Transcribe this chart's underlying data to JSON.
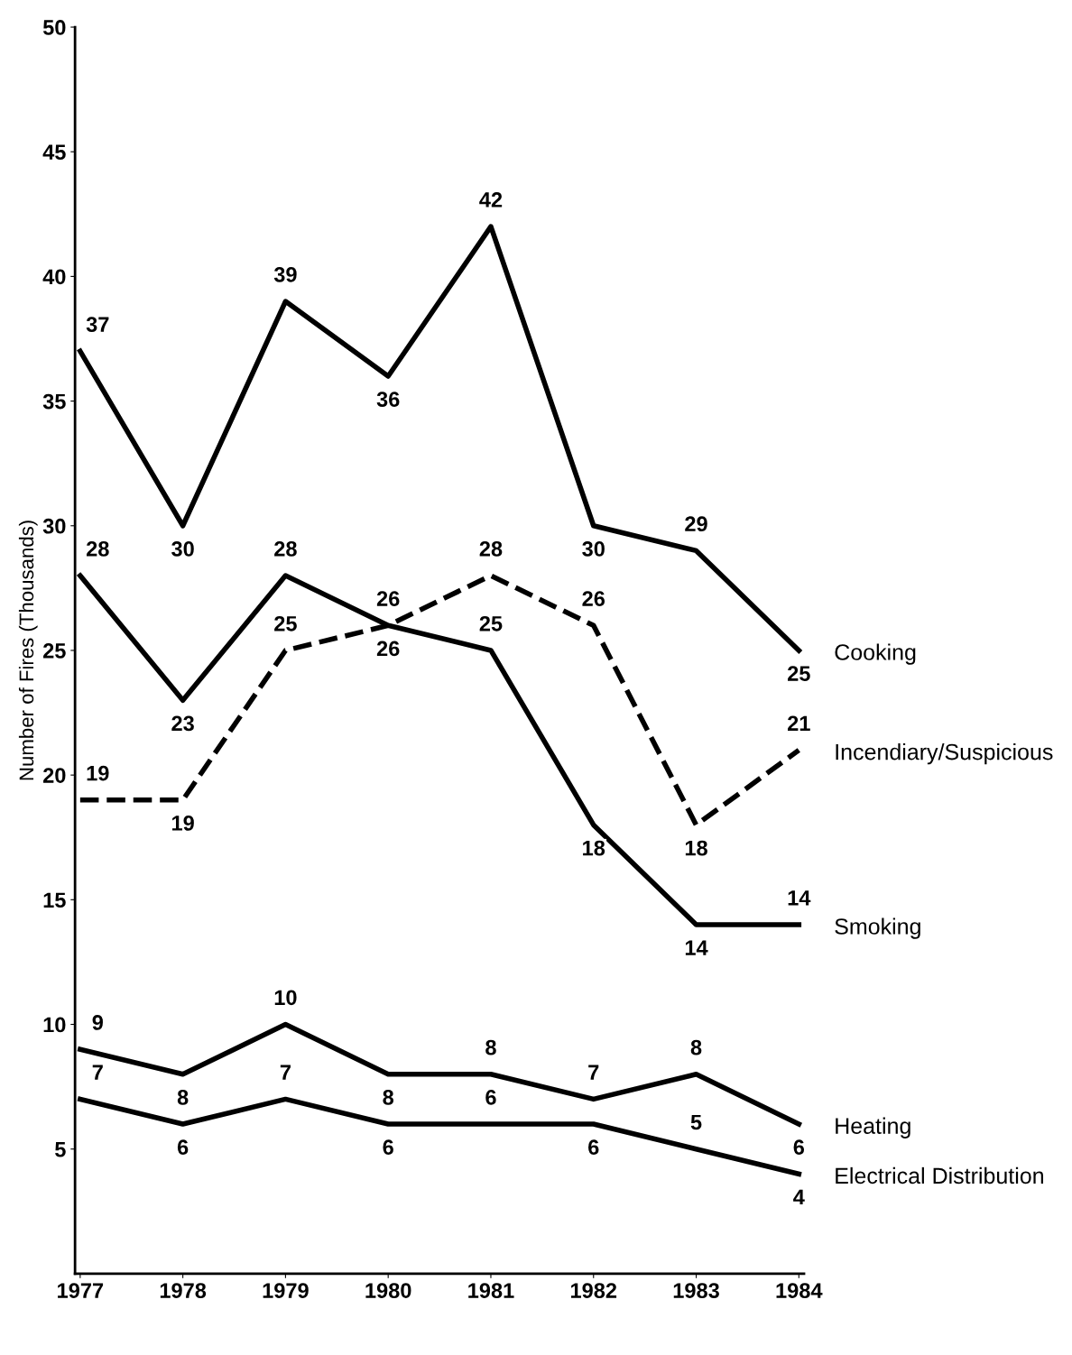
{
  "chart_data": {
    "type": "line",
    "ylabel": "Number of Fires (Thousands)",
    "categories": [
      "1977",
      "1978",
      "1979",
      "1980",
      "1981",
      "1982",
      "1983",
      "1984"
    ],
    "ylim": [
      0,
      50
    ],
    "yticks": [
      5,
      10,
      15,
      20,
      25,
      30,
      35,
      40,
      45,
      50
    ],
    "grid": false,
    "legend": false,
    "data_labels": true,
    "marker": "none",
    "series": [
      {
        "name": "Cooking",
        "color": "#000000",
        "line_style": "solid",
        "values": [
          37,
          30,
          39,
          36,
          42,
          30,
          29,
          25
        ]
      },
      {
        "name": "Incendiary/Suspicious",
        "color": "#000000",
        "line_style": "dashed",
        "values": [
          19,
          19,
          25,
          26,
          28,
          26,
          18,
          21
        ]
      },
      {
        "name": "Smoking",
        "color": "#000000",
        "line_style": "solid",
        "values": [
          28,
          23,
          28,
          26,
          25,
          18,
          14,
          14
        ]
      },
      {
        "name": "Heating",
        "color": "#000000",
        "line_style": "solid",
        "values": [
          9,
          8,
          10,
          8,
          8,
          7,
          8,
          6
        ]
      },
      {
        "name": "Electrical Distribution",
        "color": "#000000",
        "line_style": "solid",
        "values": [
          7,
          6,
          7,
          6,
          6,
          6,
          5,
          4
        ]
      }
    ]
  }
}
